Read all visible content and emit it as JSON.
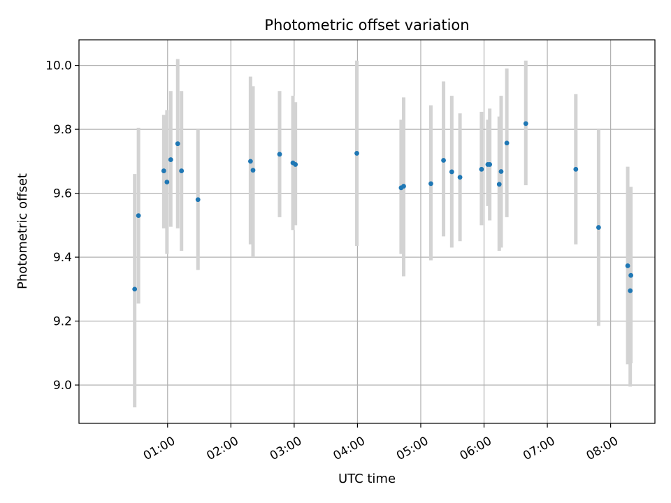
{
  "chart_data": {
    "type": "scatter",
    "title": "Photometric offset variation",
    "xlabel": "UTC time",
    "ylabel": "Photometric offset",
    "x_unit": "hours UTC",
    "xlim": [
      -0.4,
      8.7
    ],
    "ylim": [
      8.88,
      10.08
    ],
    "grid": true,
    "x_ticks": [
      {
        "value": 1,
        "label": "01:00"
      },
      {
        "value": 2,
        "label": "02:00"
      },
      {
        "value": 3,
        "label": "03:00"
      },
      {
        "value": 4,
        "label": "04:00"
      },
      {
        "value": 5,
        "label": "05:00"
      },
      {
        "value": 6,
        "label": "06:00"
      },
      {
        "value": 7,
        "label": "07:00"
      },
      {
        "value": 8,
        "label": "08:00"
      }
    ],
    "y_ticks": [
      {
        "value": 9.0,
        "label": "9.0"
      },
      {
        "value": 9.2,
        "label": "9.2"
      },
      {
        "value": 9.4,
        "label": "9.4"
      },
      {
        "value": 9.6,
        "label": "9.6"
      },
      {
        "value": 9.8,
        "label": "9.8"
      },
      {
        "value": 10.0,
        "label": "10.0"
      }
    ],
    "marker_color": "#1f77b4",
    "errorbar_color": "#d3d3d3",
    "points": [
      {
        "x": 0.48,
        "y": 9.3,
        "ylo": 8.93,
        "yhi": 9.66
      },
      {
        "x": 0.54,
        "y": 9.53,
        "ylo": 9.255,
        "yhi": 9.805
      },
      {
        "x": 0.94,
        "y": 9.67,
        "ylo": 9.49,
        "yhi": 9.845
      },
      {
        "x": 0.99,
        "y": 9.635,
        "ylo": 9.41,
        "yhi": 9.86
      },
      {
        "x": 1.05,
        "y": 9.705,
        "ylo": 9.495,
        "yhi": 9.92
      },
      {
        "x": 1.16,
        "y": 9.755,
        "ylo": 9.49,
        "yhi": 10.02
      },
      {
        "x": 1.22,
        "y": 9.67,
        "ylo": 9.42,
        "yhi": 9.92
      },
      {
        "x": 1.48,
        "y": 9.58,
        "ylo": 9.36,
        "yhi": 9.8
      },
      {
        "x": 2.31,
        "y": 9.7,
        "ylo": 9.44,
        "yhi": 9.965
      },
      {
        "x": 2.35,
        "y": 9.672,
        "ylo": 9.4,
        "yhi": 9.935
      },
      {
        "x": 2.77,
        "y": 9.722,
        "ylo": 9.525,
        "yhi": 9.92
      },
      {
        "x": 2.98,
        "y": 9.695,
        "ylo": 9.485,
        "yhi": 9.905
      },
      {
        "x": 3.02,
        "y": 9.69,
        "ylo": 9.5,
        "yhi": 9.885
      },
      {
        "x": 3.99,
        "y": 9.725,
        "ylo": 9.435,
        "yhi": 10.015
      },
      {
        "x": 4.69,
        "y": 9.617,
        "ylo": 9.41,
        "yhi": 9.83
      },
      {
        "x": 4.73,
        "y": 9.622,
        "ylo": 9.34,
        "yhi": 9.9
      },
      {
        "x": 5.16,
        "y": 9.63,
        "ylo": 9.39,
        "yhi": 9.875
      },
      {
        "x": 5.36,
        "y": 9.703,
        "ylo": 9.465,
        "yhi": 9.95
      },
      {
        "x": 5.49,
        "y": 9.667,
        "ylo": 9.43,
        "yhi": 9.905
      },
      {
        "x": 5.62,
        "y": 9.65,
        "ylo": 9.45,
        "yhi": 9.85
      },
      {
        "x": 5.96,
        "y": 9.675,
        "ylo": 9.5,
        "yhi": 9.855
      },
      {
        "x": 6.06,
        "y": 9.69,
        "ylo": 9.56,
        "yhi": 9.83
      },
      {
        "x": 6.09,
        "y": 9.69,
        "ylo": 9.515,
        "yhi": 9.865
      },
      {
        "x": 6.24,
        "y": 9.628,
        "ylo": 9.42,
        "yhi": 9.84
      },
      {
        "x": 6.27,
        "y": 9.668,
        "ylo": 9.43,
        "yhi": 9.905
      },
      {
        "x": 6.36,
        "y": 9.757,
        "ylo": 9.525,
        "yhi": 9.99
      },
      {
        "x": 6.66,
        "y": 9.818,
        "ylo": 9.625,
        "yhi": 10.015
      },
      {
        "x": 7.45,
        "y": 9.675,
        "ylo": 9.44,
        "yhi": 9.91
      },
      {
        "x": 7.81,
        "y": 9.493,
        "ylo": 9.185,
        "yhi": 9.8
      },
      {
        "x": 8.27,
        "y": 9.373,
        "ylo": 9.065,
        "yhi": 9.683
      },
      {
        "x": 8.32,
        "y": 9.343,
        "ylo": 9.068,
        "yhi": 9.62
      },
      {
        "x": 8.31,
        "y": 9.295,
        "ylo": 8.995,
        "yhi": 9.595
      }
    ]
  }
}
